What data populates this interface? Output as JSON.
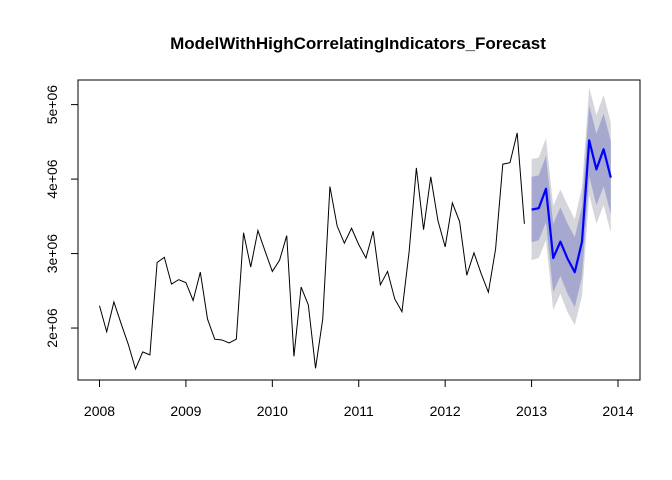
{
  "chart_data": {
    "type": "line",
    "title": "ModelWithHighCorrelatingIndicators_Forecast",
    "xlabel": "",
    "ylabel": "",
    "xlim": [
      2008,
      2014
    ],
    "ylim": [
      1450000,
      5250000
    ],
    "grid": false,
    "x_ticks": [
      2008,
      2009,
      2010,
      2011,
      2012,
      2013,
      2014
    ],
    "x_tick_labels": [
      "2008",
      "2009",
      "2010",
      "2011",
      "2012",
      "2013",
      "2014"
    ],
    "y_ticks": [
      2000000,
      3000000,
      4000000,
      5000000
    ],
    "y_tick_labels": [
      "2e+06",
      "3e+06",
      "4e+06",
      "5e+06"
    ],
    "colors": {
      "history": "#000000",
      "forecast": "#0000ff",
      "band_80": "#a6a8cf",
      "band_95": "#d5d5dc"
    },
    "series": [
      {
        "start": 2008,
        "frequency": 12,
        "values": [
          2300000,
          1950000,
          2350000,
          2060000,
          1780000,
          1450000,
          1680000,
          1640000,
          2880000,
          2950000,
          2590000,
          2650000,
          2610000,
          2370000,
          2750000,
          2120000,
          1850000,
          1840000,
          1800000,
          1850000,
          3280000,
          2820000,
          3310000,
          3030000,
          2760000,
          2910000,
          3240000,
          1620000,
          2550000,
          2310000,
          1460000,
          2120000,
          3900000,
          3370000,
          3140000,
          3340000,
          3120000,
          2940000,
          3300000,
          2580000,
          2760000,
          2390000,
          2220000,
          3030000,
          4150000,
          3320000,
          4030000,
          3440000,
          3090000,
          3680000,
          3430000,
          2710000,
          3010000,
          2730000,
          2480000,
          3060000,
          4200000,
          4220000,
          4620000,
          3400000
        ]
      },
      {
        "start": 2013,
        "frequency": 12,
        "values": [
          3590000,
          3610000,
          3870000,
          2940000,
          3160000,
          2930000,
          2750000,
          3160000,
          4520000,
          4130000,
          4400000,
          4020000
        ],
        "lower_80": [
          3150000,
          3180000,
          3420000,
          2480000,
          2700000,
          2460000,
          2280000,
          2690000,
          4040000,
          3650000,
          3900000,
          3530000
        ],
        "upper_80": [
          4030000,
          4050000,
          4310000,
          3400000,
          3620000,
          3400000,
          3220000,
          3630000,
          4990000,
          4610000,
          4880000,
          4510000
        ],
        "lower_95": [
          2910000,
          2940000,
          3180000,
          2240000,
          2460000,
          2210000,
          2040000,
          2430000,
          3790000,
          3400000,
          3650000,
          3280000
        ],
        "upper_95": [
          4270000,
          4290000,
          4550000,
          3640000,
          3860000,
          3650000,
          3460000,
          3890000,
          5230000,
          4860000,
          5130000,
          4760000
        ]
      }
    ]
  }
}
